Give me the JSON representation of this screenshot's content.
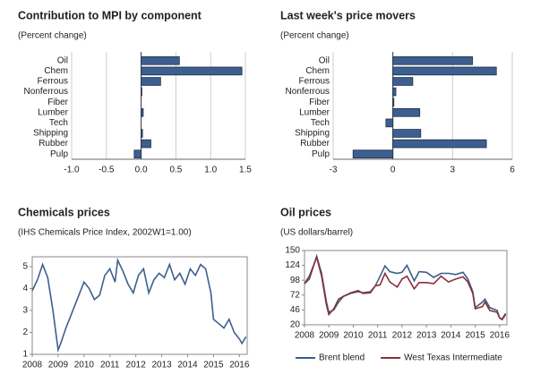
{
  "chart_data": [
    {
      "type": "bar",
      "orientation": "horizontal",
      "title": "Contribution to MPI by component",
      "subtitle": "(Percent change)",
      "categories": [
        "Oil",
        "Chem",
        "Ferrous",
        "Nonferrous",
        "Fiber",
        "Lumber",
        "Tech",
        "Shipping",
        "Rubber",
        "Pulp"
      ],
      "values": [
        0.55,
        1.45,
        0.28,
        0.01,
        0.0,
        0.03,
        0.0,
        0.02,
        0.14,
        -0.1
      ],
      "color": "#3d5f8f",
      "xlim": [
        -1,
        1.5
      ],
      "xticks": [
        {
          "value": -1,
          "label": "-1.0"
        },
        {
          "value": -0.5,
          "label": "-0.5"
        },
        {
          "value": 0,
          "label": "0.0"
        },
        {
          "value": 0.5,
          "label": "0.5"
        },
        {
          "value": 1,
          "label": "1.0"
        },
        {
          "value": 1.5,
          "label": "1.5"
        }
      ],
      "grid": true
    },
    {
      "type": "bar",
      "orientation": "horizontal",
      "title": "Last week's price movers",
      "subtitle": "(Percent change)",
      "categories": [
        "Oil",
        "Chem",
        "Ferrous",
        "Nonferrous",
        "Fiber",
        "Lumber",
        "Tech",
        "Shipping",
        "Rubber",
        "Pulp"
      ],
      "values": [
        4.0,
        5.2,
        1.0,
        0.15,
        0.05,
        1.35,
        -0.35,
        1.4,
        4.7,
        -2.0
      ],
      "color": "#3d5f8f",
      "xlim": [
        -3,
        6
      ],
      "xticks": [
        -3,
        0,
        3,
        6
      ],
      "grid": true
    },
    {
      "type": "line",
      "title": "Chemicals prices",
      "subtitle": "(IHS Chemicals Price Index, 2002W1=1.00)",
      "x": [
        2008.0,
        2008.2,
        2008.4,
        2008.6,
        2008.8,
        2009.0,
        2009.1,
        2009.3,
        2009.5,
        2009.7,
        2010.0,
        2010.2,
        2010.4,
        2010.6,
        2010.8,
        2011.0,
        2011.2,
        2011.3,
        2011.5,
        2011.7,
        2011.9,
        2012.1,
        2012.3,
        2012.5,
        2012.7,
        2012.9,
        2013.1,
        2013.3,
        2013.5,
        2013.7,
        2013.9,
        2014.1,
        2014.3,
        2014.5,
        2014.7,
        2014.9,
        2015.0,
        2015.2,
        2015.4,
        2015.6,
        2015.8,
        2016.0,
        2016.1,
        2016.25
      ],
      "values": [
        3.9,
        4.4,
        5.1,
        4.5,
        3.0,
        1.2,
        1.5,
        2.2,
        2.8,
        3.4,
        4.3,
        4.0,
        3.5,
        3.7,
        4.6,
        4.9,
        4.3,
        5.3,
        4.8,
        4.2,
        3.8,
        4.6,
        4.9,
        3.8,
        4.4,
        4.7,
        4.5,
        5.1,
        4.4,
        4.7,
        4.2,
        4.9,
        4.6,
        5.1,
        4.9,
        3.8,
        2.6,
        2.4,
        2.2,
        2.6,
        2.0,
        1.7,
        1.5,
        1.8
      ],
      "color": "#3d5f8f",
      "xlim": [
        2008,
        2016.3
      ],
      "xticks": [
        2008,
        2009,
        2010,
        2011,
        2012,
        2013,
        2014,
        2015,
        2016
      ],
      "ylim": [
        1,
        5.45
      ],
      "yticks": [
        1,
        2,
        3,
        4,
        5
      ]
    },
    {
      "type": "line",
      "title": "Oil prices",
      "subtitle": "(US dollars/barrel)",
      "x": [
        2008.0,
        2008.2,
        2008.5,
        2008.7,
        2008.9,
        2009.0,
        2009.2,
        2009.4,
        2009.6,
        2009.9,
        2010.2,
        2010.4,
        2010.7,
        2010.9,
        2011.1,
        2011.3,
        2011.5,
        2011.8,
        2012.0,
        2012.2,
        2012.5,
        2012.7,
        2013.0,
        2013.3,
        2013.6,
        2013.9,
        2014.2,
        2014.5,
        2014.7,
        2014.9,
        2015.0,
        2015.3,
        2015.4,
        2015.6,
        2015.9,
        2016.0,
        2016.1,
        2016.25
      ],
      "series": [
        {
          "name": "Brent blend",
          "color": "#3b5f8a",
          "values": [
            92,
            100,
            140,
            110,
            60,
            42,
            46,
            60,
            70,
            75,
            78,
            76,
            78,
            88,
            105,
            123,
            113,
            110,
            112,
            124,
            97,
            113,
            112,
            103,
            110,
            110,
            108,
            112,
            100,
            78,
            50,
            60,
            65,
            50,
            45,
            32,
            30,
            40
          ]
        },
        {
          "name": "West Texas Intermediate",
          "color": "#8b2f3a",
          "values": [
            92,
            105,
            138,
            105,
            55,
            38,
            48,
            65,
            70,
            76,
            80,
            75,
            76,
            88,
            90,
            110,
            95,
            86,
            100,
            105,
            83,
            94,
            94,
            92,
            105,
            95,
            100,
            104,
            95,
            75,
            48,
            52,
            60,
            45,
            42,
            32,
            29,
            38
          ]
        }
      ],
      "xlim": [
        2008,
        2016.3
      ],
      "xticks": [
        2008,
        2009,
        2010,
        2011,
        2012,
        2013,
        2014,
        2015,
        2016
      ],
      "ylim": [
        20,
        150
      ],
      "yticks": [
        20,
        46,
        72,
        98,
        124,
        150
      ],
      "legend": "bottom"
    }
  ]
}
